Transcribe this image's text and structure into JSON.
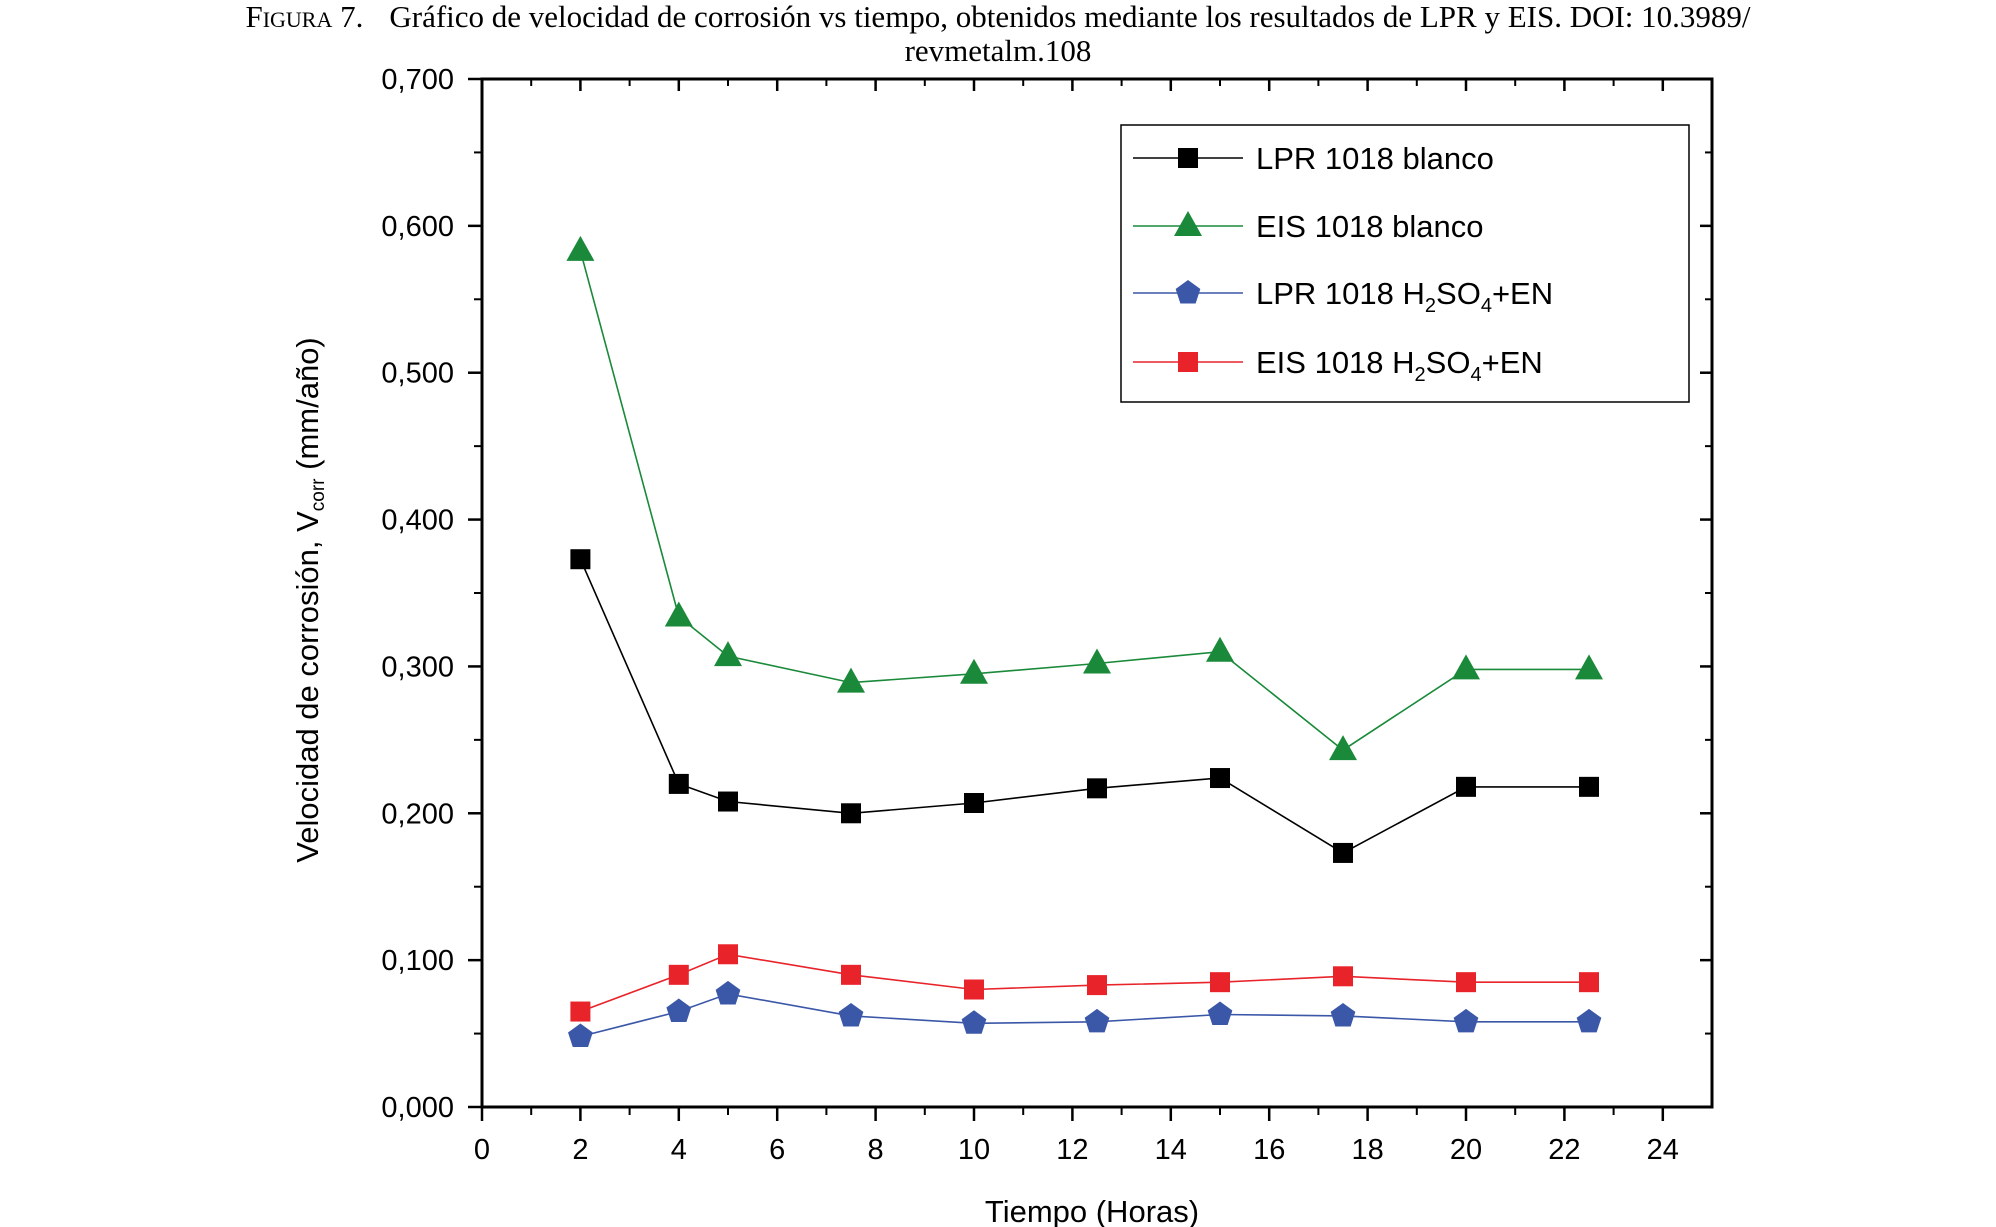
{
  "caption": {
    "label": "Figura 7.",
    "line1": "Gráfico de velocidad de corrosión vs tiempo, obtenidos mediante los resultados de LPR y EIS. DOI: 10.3989/",
    "line2": "revmetalm.108"
  },
  "chart_data": {
    "type": "line",
    "xlabel": "Tiempo (Horas)",
    "ylabel": {
      "main": "Velocidad de corrosión, V",
      "sub": "corr",
      "unit": " (mm/año)"
    },
    "xlim": [
      0,
      25
    ],
    "ylim": [
      0,
      0.7
    ],
    "xticks": [
      0,
      2,
      4,
      6,
      8,
      10,
      12,
      14,
      16,
      18,
      20,
      22,
      24
    ],
    "xtick_labels": [
      "0",
      "2",
      "4",
      "6",
      "8",
      "10",
      "12",
      "14",
      "16",
      "18",
      "20",
      "22",
      "24"
    ],
    "yticks": [
      0,
      0.1,
      0.2,
      0.3,
      0.4,
      0.5,
      0.6,
      0.7
    ],
    "ytick_labels": [
      "0,000",
      "0,100",
      "0,200",
      "0,300",
      "0,400",
      "0,500",
      "0,600",
      "0,700"
    ],
    "grid": false,
    "legend_position": "top-right",
    "x": [
      2,
      4,
      5,
      7.5,
      10,
      12.5,
      15,
      17.5,
      20,
      22.5
    ],
    "series": [
      {
        "name": "LPR 1018 blanco",
        "legend": {
          "pre": "LPR 1018 blanco"
        },
        "color": "#000000",
        "marker": "square",
        "values": [
          0.373,
          0.22,
          0.208,
          0.2,
          0.207,
          0.217,
          0.224,
          0.173,
          0.218,
          0.218
        ]
      },
      {
        "name": "EIS 1018 blanco",
        "legend": {
          "pre": "EIS 1018 blanco"
        },
        "color": "#1a8a3a",
        "marker": "triangle",
        "values": [
          0.583,
          0.334,
          0.307,
          0.289,
          0.295,
          0.302,
          0.31,
          0.243,
          0.298,
          0.298
        ]
      },
      {
        "name": "LPR 1018 H2SO4+EN",
        "legend": {
          "pre": "LPR 1018 H",
          "sub1": "2",
          "mid": "SO",
          "sub2": "4",
          "post": "+EN"
        },
        "color": "#3b57a8",
        "marker": "pentagon",
        "values": [
          0.048,
          0.065,
          0.077,
          0.062,
          0.057,
          0.058,
          0.063,
          0.062,
          0.058,
          0.058
        ]
      },
      {
        "name": "EIS 1018 H2SO4+EN",
        "legend": {
          "pre": "EIS 1018 H",
          "sub1": "2",
          "mid": "SO",
          "sub2": "4",
          "post": "+EN"
        },
        "color": "#e8232a",
        "marker": "square",
        "values": [
          0.065,
          0.09,
          0.104,
          0.09,
          0.08,
          0.083,
          0.085,
          0.089,
          0.085,
          0.085
        ]
      }
    ]
  }
}
